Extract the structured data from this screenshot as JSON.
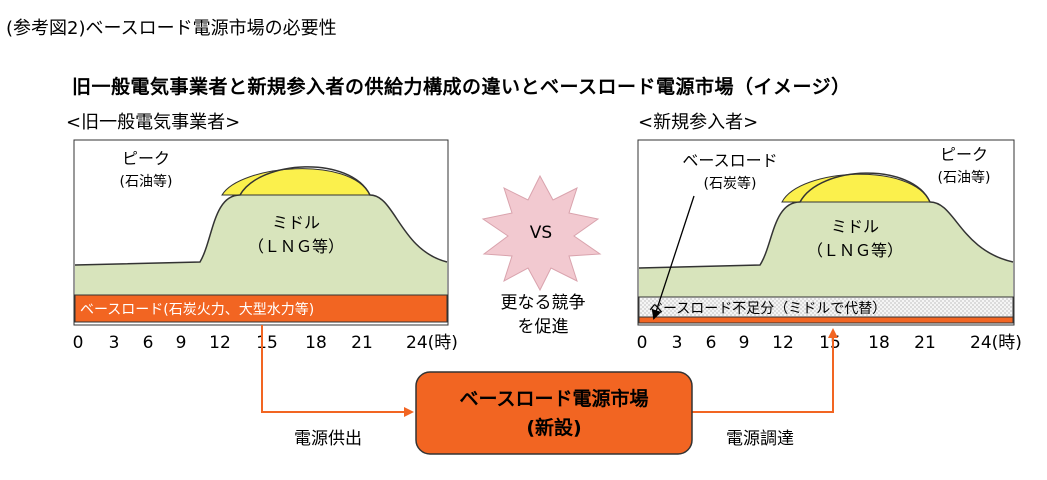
{
  "figure_caption": "(参考図2)ベースロード電源市場の必要性",
  "title": "旧一般電気事業者と新規参入者の供給力構成の違いとベースロード電源市場（イメージ）",
  "left_panel": {
    "label": "<旧一般電気事業者>",
    "peak": "ピーク",
    "peak_sub": "(石油等)",
    "middle": "ミドル",
    "middle_sub": "（ＬＮＧ等）",
    "base": "ベースロード(石炭火力、大型水力等)"
  },
  "right_panel": {
    "label": "<新規参入者>",
    "base_callout": "ベースロード",
    "base_callout_sub": "(石炭等)",
    "peak": "ピーク",
    "peak_sub": "(石油等)",
    "middle": "ミドル",
    "middle_sub": "（ＬＮＧ等）",
    "base": "ベースロード不足分（ミドルで代替）"
  },
  "axis": {
    "ticks": [
      "0",
      "3",
      "6",
      "9",
      "12",
      "15",
      "18",
      "21",
      "24(時)"
    ]
  },
  "vs": {
    "label": "VS",
    "note_line1": "更なる競争",
    "note_line2": "を促進"
  },
  "market_box": {
    "line1": "ベースロード電源市場",
    "line2": "(新設)"
  },
  "flows": {
    "supply": "電源供出",
    "procure": "電源調達"
  },
  "colors": {
    "peak": "#fbf04c",
    "middle": "#d8e4bc",
    "base": "#f26522",
    "base_shortfall": "#f3f3f3",
    "vs_star": "#f2c9d0",
    "market_box": "#f26522",
    "arrow": "#f26522"
  }
}
